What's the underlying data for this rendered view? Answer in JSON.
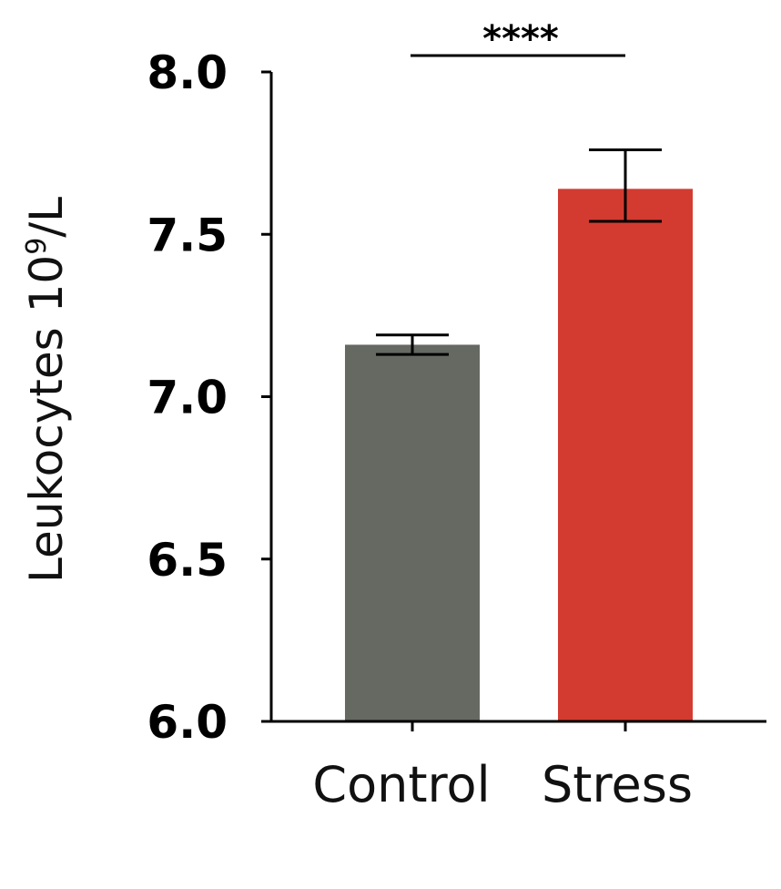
{
  "chart_data": {
    "type": "bar",
    "categories": [
      "Control",
      "Stress"
    ],
    "series": [
      {
        "values": [
          7.16,
          7.64
        ],
        "errors_lower": [
          7.13,
          7.54
        ],
        "errors_upper": [
          7.19,
          7.76
        ],
        "colors": [
          "#656962",
          "#d33b31"
        ]
      }
    ],
    "ylabel": {
      "main": "Leukocytes 10",
      "superscript": "9",
      "suffix": "/L"
    },
    "yticks": [
      "6.0",
      "6.5",
      "7.0",
      "7.5",
      "8.0"
    ],
    "ylim": [
      6.0,
      8.0
    ],
    "significance": {
      "label": "****",
      "between": [
        "Control",
        "Stress"
      ]
    },
    "grid": false,
    "legend": "none"
  }
}
